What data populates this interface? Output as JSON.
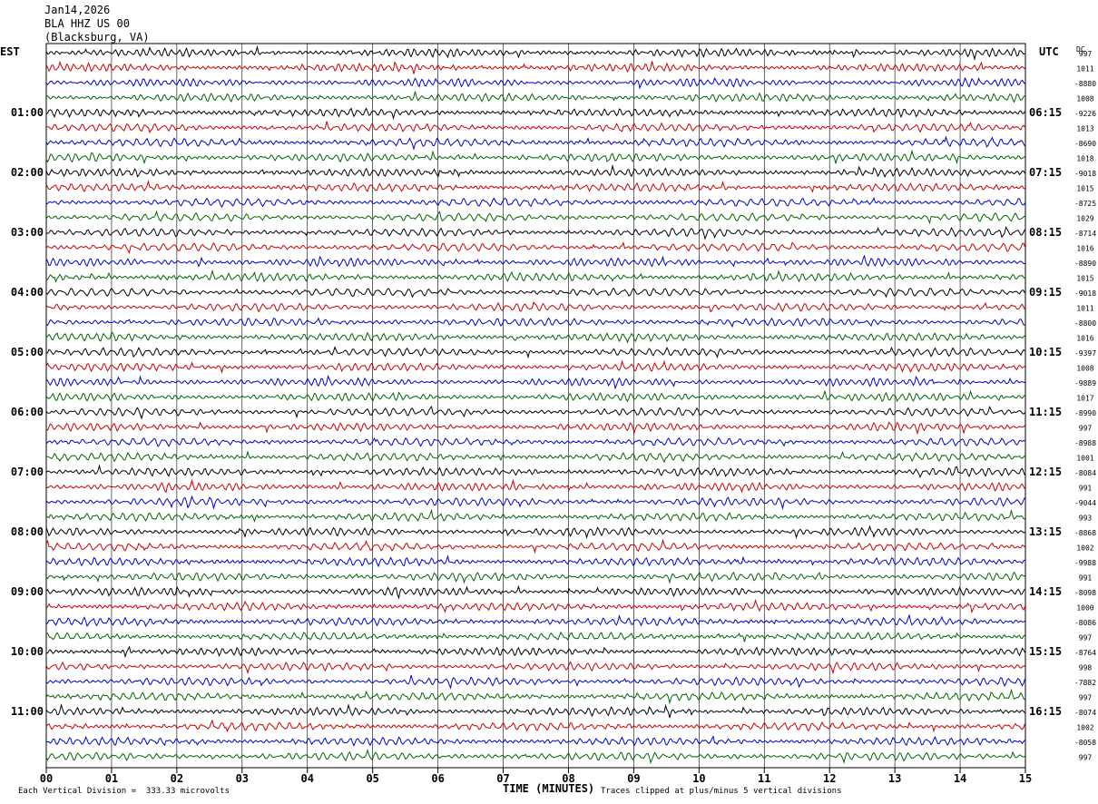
{
  "header": {
    "date": "Jan14,2026",
    "station": "BLA HHZ US 00",
    "location": "(Blacksburg, VA)"
  },
  "left_zone_label": "EST",
  "right_zone_label": "UTC",
  "dc_label": "DC",
  "footer": {
    "scale_note": "Each Vertical Division =  333.33 microvolts",
    "x_axis_title": "TIME (MINUTES)",
    "clip_note": "Traces clipped at plus/minus 5 vertical divisions"
  },
  "colors": {
    "trace_cycle": [
      "#000000",
      "#cc0000",
      "#0000cc",
      "#006600"
    ],
    "grid": "#000000"
  },
  "chart_data": {
    "type": "line",
    "xlabel": "TIME (MINUTES)",
    "xlim": [
      0,
      15
    ],
    "x_ticks": [
      "00",
      "01",
      "02",
      "03",
      "04",
      "05",
      "06",
      "07",
      "08",
      "09",
      "10",
      "11",
      "12",
      "13",
      "14",
      "15"
    ],
    "rows": 48,
    "minutes_per_row": 15,
    "left_hour_labels": [
      "01:00",
      "02:00",
      "03:00",
      "04:00",
      "05:00",
      "06:00",
      "07:00",
      "08:00",
      "09:00",
      "10:00",
      "11:00"
    ],
    "right_hour_labels": [
      "06:15",
      "07:15",
      "08:15",
      "09:15",
      "10:15",
      "11:15",
      "12:15",
      "13:15",
      "14:15",
      "15:15",
      "16:15"
    ],
    "dc_offsets": [
      "997",
      "1011",
      "-8880",
      "1008",
      "-9226",
      "1013",
      "-8690",
      "1018",
      "-9018",
      "1015",
      "-8725",
      "1029",
      "-8714",
      "1016",
      "-8890",
      "1015",
      "-9018",
      "1011",
      "-8800",
      "1016",
      "-9397",
      "1008",
      "-9889",
      "1017",
      "-8990",
      "997",
      "-8988",
      "1001",
      "-8084",
      "991",
      "-9044",
      "993",
      "-8868",
      "1002",
      "-9988",
      "991",
      "-8098",
      "1000",
      "-8086",
      "997",
      "-8764",
      "998",
      "-7882",
      "997",
      "-8074",
      "1002",
      "-8058",
      "997"
    ]
  }
}
